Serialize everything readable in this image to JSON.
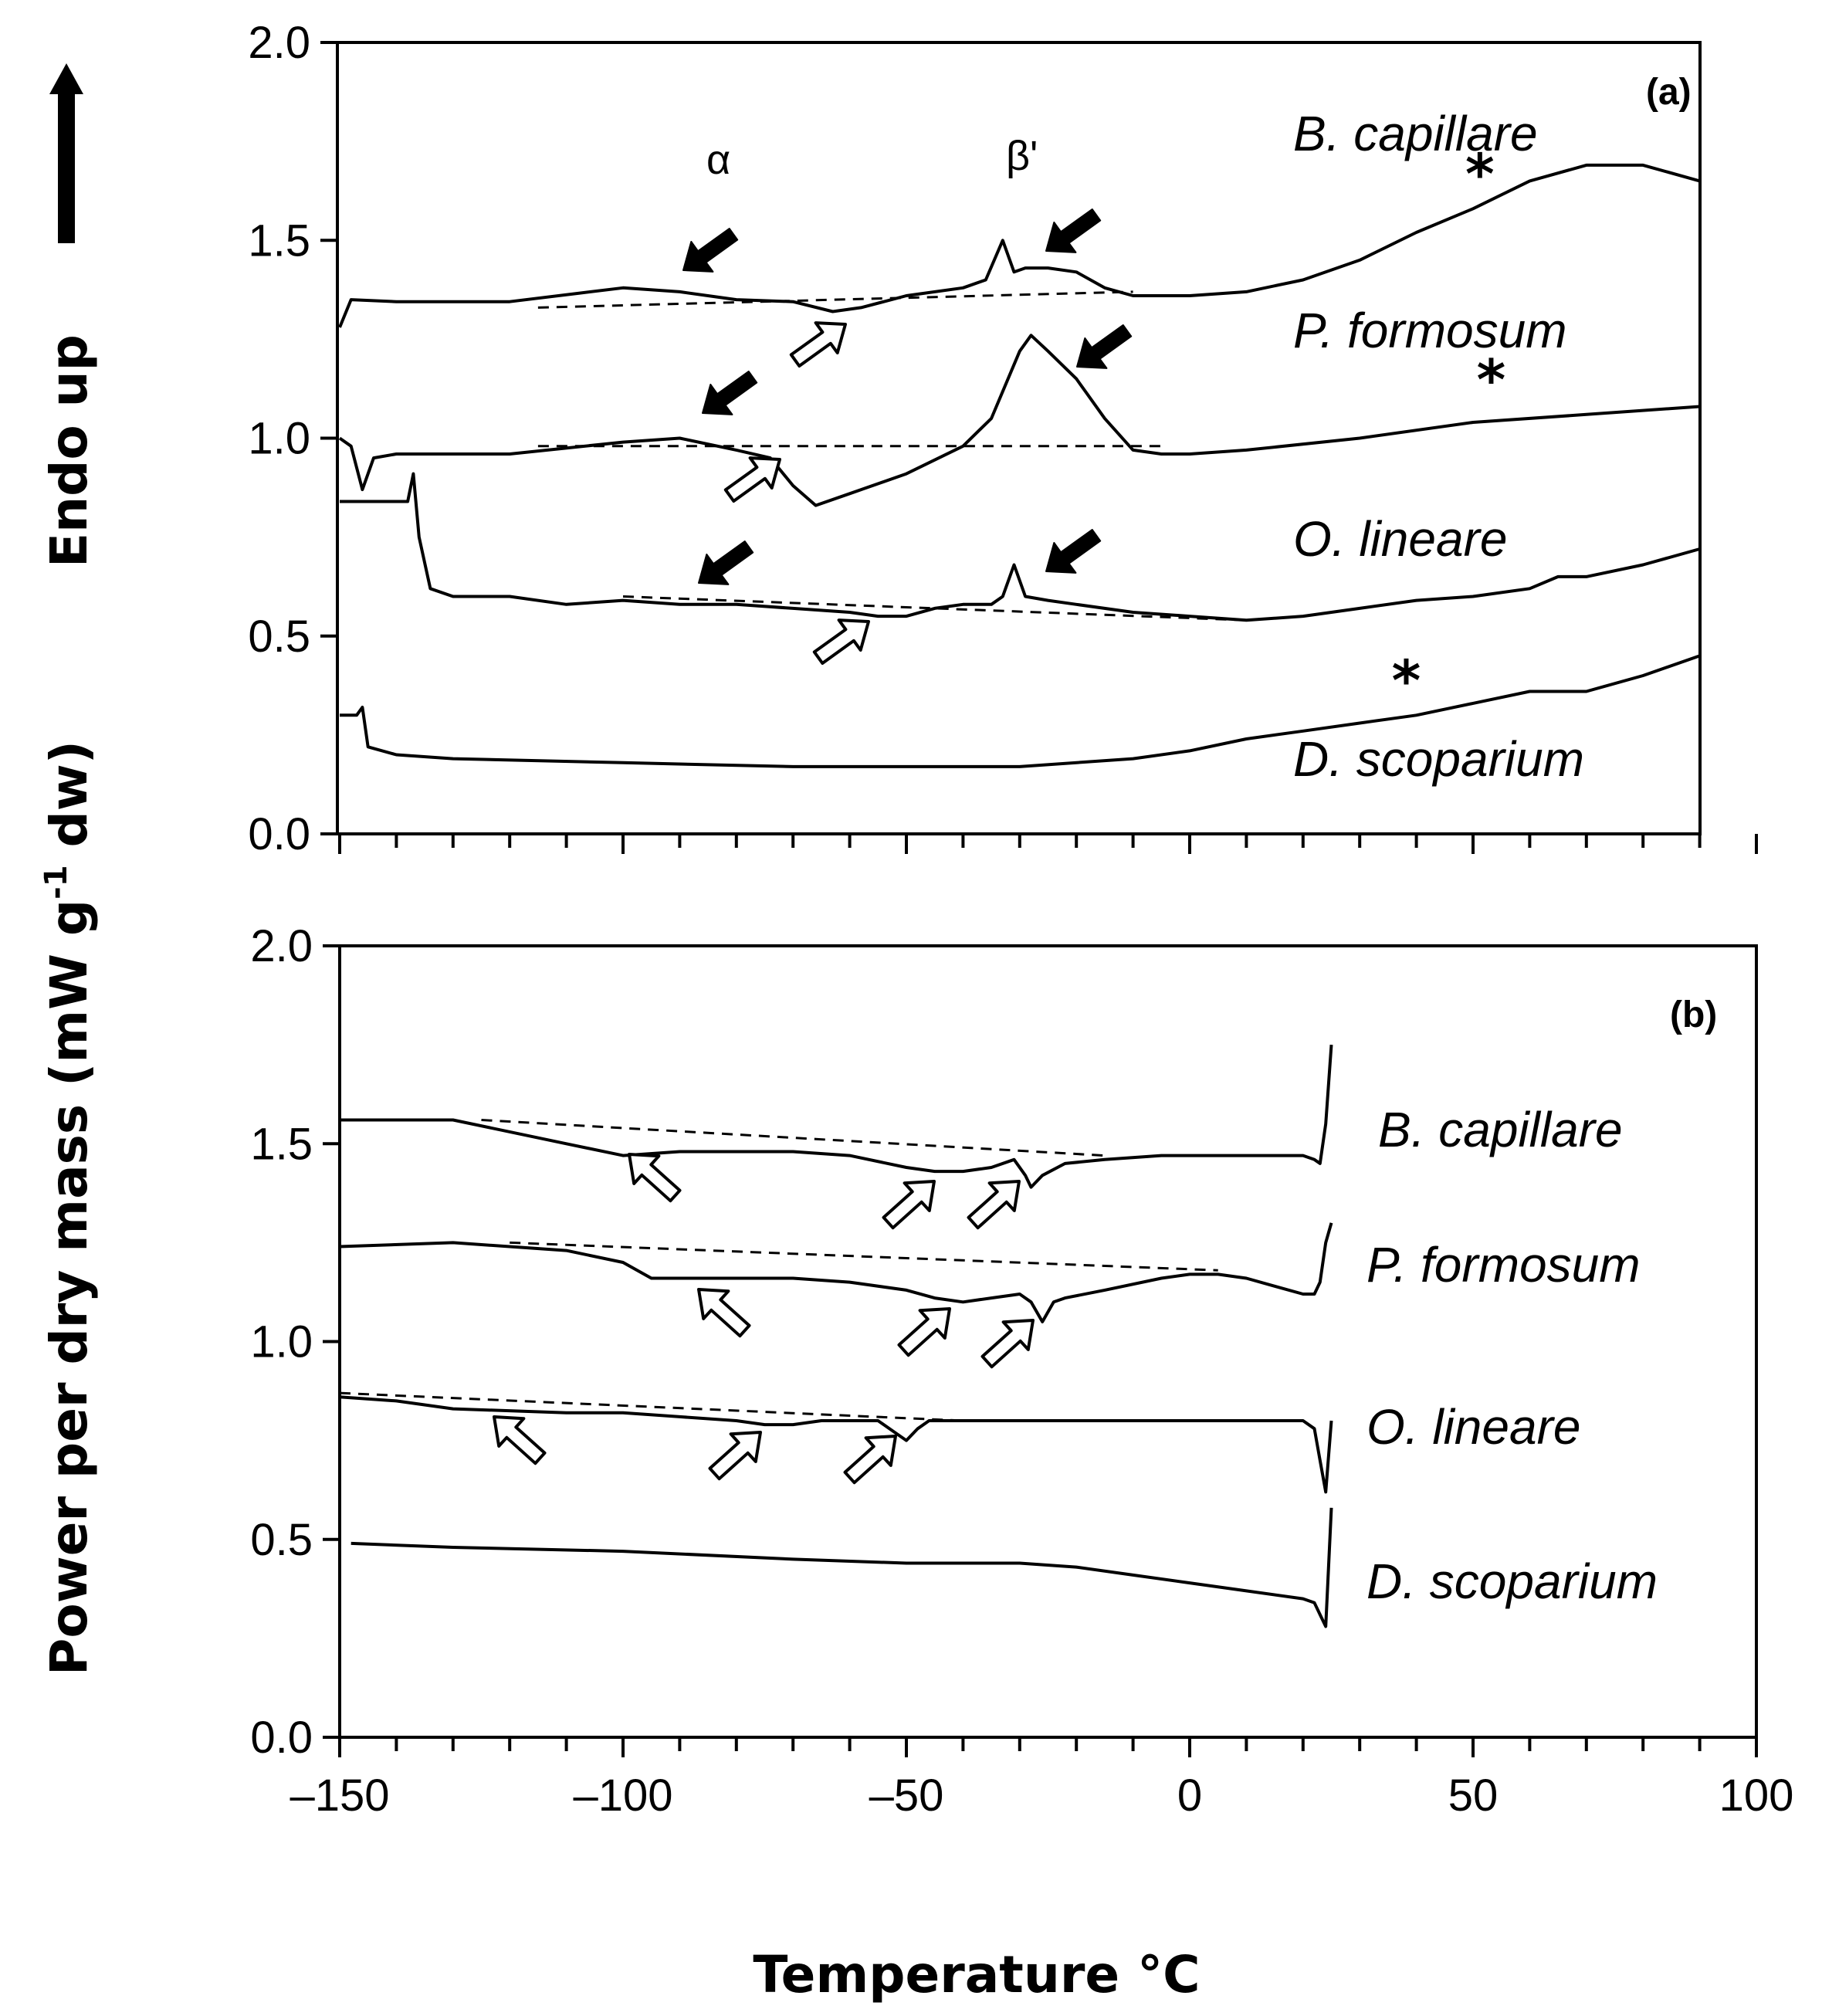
{
  "chart_data": [
    {
      "panel": "(a)",
      "type": "line",
      "ylabel": "Power per dry mass (mW g-1 dw)",
      "xlabel": "Temperature °C",
      "xlim": [
        -150,
        90
      ],
      "ylim": [
        0,
        2.0
      ],
      "yticks": [
        "0.0",
        "0.5",
        "1.0",
        "1.5",
        "2.0"
      ],
      "annotations": [
        "α",
        "β'"
      ],
      "series": [
        {
          "name": "B. capillare",
          "x": [
            -150,
            -148,
            -140,
            -120,
            -100,
            -90,
            -80,
            -70,
            -63,
            -58,
            -50,
            -40,
            -36,
            -33,
            -31,
            -29,
            -25,
            -20,
            -15,
            -10,
            0,
            10,
            20,
            30,
            40,
            50,
            60,
            70,
            80,
            90
          ],
          "y": [
            1.28,
            1.35,
            1.345,
            1.345,
            1.38,
            1.37,
            1.35,
            1.345,
            1.32,
            1.33,
            1.36,
            1.38,
            1.4,
            1.5,
            1.42,
            1.43,
            1.43,
            1.42,
            1.38,
            1.36,
            1.36,
            1.37,
            1.4,
            1.45,
            1.52,
            1.58,
            1.65,
            1.69,
            1.69,
            1.65
          ],
          "baseline": {
            "x": [
              -115,
              -10
            ],
            "y": [
              1.33,
              1.37
            ]
          },
          "star_x": 50
        },
        {
          "name": "P. formosum",
          "x": [
            -150,
            -148,
            -146,
            -144,
            -140,
            -120,
            -100,
            -90,
            -80,
            -74,
            -70,
            -66,
            -60,
            -50,
            -40,
            -35,
            -30,
            -28,
            -25,
            -20,
            -15,
            -10,
            -5,
            0,
            10,
            30,
            50,
            70,
            90
          ],
          "y": [
            1.0,
            0.98,
            0.87,
            0.95,
            0.96,
            0.96,
            0.99,
            1.0,
            0.97,
            0.95,
            0.88,
            0.83,
            0.86,
            0.91,
            0.98,
            1.05,
            1.22,
            1.26,
            1.22,
            1.15,
            1.05,
            0.97,
            0.96,
            0.96,
            0.97,
            1.0,
            1.04,
            1.06,
            1.08
          ],
          "baseline": {
            "x": [
              -115,
              -5
            ],
            "y": [
              0.98,
              0.98
            ]
          },
          "star_x": 52
        },
        {
          "name": "O. lineare",
          "x": [
            -150,
            -140,
            -138,
            -137,
            -136,
            -134,
            -130,
            -120,
            -110,
            -100,
            -90,
            -80,
            -70,
            -60,
            -55,
            -50,
            -45,
            -40,
            -35,
            -33,
            -31,
            -29,
            -25,
            -20,
            -10,
            0,
            10,
            20,
            30,
            40,
            50,
            60,
            65,
            70,
            80,
            90
          ],
          "y": [
            0.84,
            0.84,
            0.84,
            0.91,
            0.75,
            0.62,
            0.6,
            0.6,
            0.58,
            0.59,
            0.58,
            0.58,
            0.57,
            0.56,
            0.55,
            0.55,
            0.57,
            0.58,
            0.58,
            0.6,
            0.68,
            0.6,
            0.59,
            0.58,
            0.56,
            0.55,
            0.54,
            0.55,
            0.57,
            0.59,
            0.6,
            0.62,
            0.65,
            0.65,
            0.68,
            0.72
          ],
          "baseline": {
            "x": [
              -100,
              10
            ],
            "y": [
              0.6,
              0.54
            ]
          }
        },
        {
          "name": "D. scoparium",
          "x": [
            -150,
            -147,
            -146,
            -145,
            -140,
            -130,
            -100,
            -70,
            -50,
            -30,
            -10,
            0,
            10,
            20,
            30,
            40,
            50,
            60,
            70,
            80,
            90
          ],
          "y": [
            0.3,
            0.3,
            0.32,
            0.22,
            0.2,
            0.19,
            0.18,
            0.17,
            0.17,
            0.17,
            0.19,
            0.21,
            0.24,
            0.26,
            0.28,
            0.3,
            0.33,
            0.36,
            0.36,
            0.4,
            0.45
          ],
          "star_x": 37
        }
      ]
    },
    {
      "panel": "(b)",
      "type": "line",
      "xlabel": "Temperature °C",
      "xlim": [
        -150,
        100
      ],
      "ylim": [
        0,
        2.0
      ],
      "xticks": [
        "–150",
        "–100",
        "–50",
        "0",
        "50",
        "100"
      ],
      "yticks": [
        "0.0",
        "0.5",
        "1.0",
        "1.5",
        "2.0"
      ],
      "series": [
        {
          "name": "B. capillare",
          "x": [
            -150,
            -130,
            -110,
            -100,
            -90,
            -80,
            -70,
            -60,
            -50,
            -45,
            -40,
            -35,
            -31,
            -29,
            -28,
            -26,
            -22,
            -15,
            -5,
            0,
            10,
            20,
            22,
            23,
            24,
            25
          ],
          "y": [
            1.56,
            1.56,
            1.5,
            1.47,
            1.48,
            1.48,
            1.48,
            1.47,
            1.44,
            1.43,
            1.43,
            1.44,
            1.46,
            1.42,
            1.39,
            1.42,
            1.45,
            1.46,
            1.47,
            1.47,
            1.47,
            1.47,
            1.46,
            1.45,
            1.55,
            1.75
          ],
          "baseline": {
            "x": [
              -125,
              -15
            ],
            "y": [
              1.56,
              1.47
            ]
          }
        },
        {
          "name": "P. formosum",
          "x": [
            -150,
            -130,
            -110,
            -100,
            -95,
            -90,
            -80,
            -70,
            -60,
            -50,
            -45,
            -40,
            -35,
            -30,
            -28,
            -26,
            -24,
            -22,
            -15,
            -5,
            0,
            5,
            10,
            15,
            20,
            22,
            23,
            24,
            25
          ],
          "y": [
            1.24,
            1.25,
            1.23,
            1.2,
            1.16,
            1.16,
            1.16,
            1.16,
            1.15,
            1.13,
            1.11,
            1.1,
            1.11,
            1.12,
            1.1,
            1.05,
            1.1,
            1.11,
            1.13,
            1.16,
            1.17,
            1.17,
            1.16,
            1.14,
            1.12,
            1.12,
            1.15,
            1.25,
            1.3
          ],
          "baseline": {
            "x": [
              -120,
              5
            ],
            "y": [
              1.25,
              1.18
            ]
          }
        },
        {
          "name": "O. lineare",
          "x": [
            -150,
            -140,
            -130,
            -110,
            -100,
            -90,
            -80,
            -75,
            -70,
            -65,
            -60,
            -55,
            -52,
            -50,
            -48,
            -46,
            -40,
            -30,
            -20,
            -10,
            0,
            10,
            20,
            22,
            23,
            24,
            25
          ],
          "y": [
            0.86,
            0.85,
            0.83,
            0.82,
            0.82,
            0.81,
            0.8,
            0.79,
            0.79,
            0.8,
            0.8,
            0.8,
            0.77,
            0.75,
            0.78,
            0.8,
            0.8,
            0.8,
            0.8,
            0.8,
            0.8,
            0.8,
            0.8,
            0.78,
            0.7,
            0.62,
            0.8
          ],
          "baseline": {
            "x": [
              -150,
              -40
            ],
            "y": [
              0.87,
              0.8
            ]
          }
        },
        {
          "name": "D. scoparium",
          "x": [
            -148,
            -130,
            -100,
            -70,
            -50,
            -30,
            -20,
            -10,
            0,
            10,
            20,
            22,
            23,
            24,
            25
          ],
          "y": [
            0.49,
            0.48,
            0.47,
            0.45,
            0.44,
            0.44,
            0.43,
            0.41,
            0.39,
            0.37,
            0.35,
            0.34,
            0.31,
            0.28,
            0.58
          ]
        }
      ]
    }
  ],
  "labels": {
    "panel_a": "(a)",
    "panel_b": "(b)",
    "alpha": "α",
    "beta_prime": "β'",
    "endo_up": "Endo up",
    "ylabel_main": "Power per dry mass (mW g",
    "ylabel_sup": "-1",
    "ylabel_tail": " dw)",
    "xlabel": "Temperature °C",
    "star": "*"
  }
}
